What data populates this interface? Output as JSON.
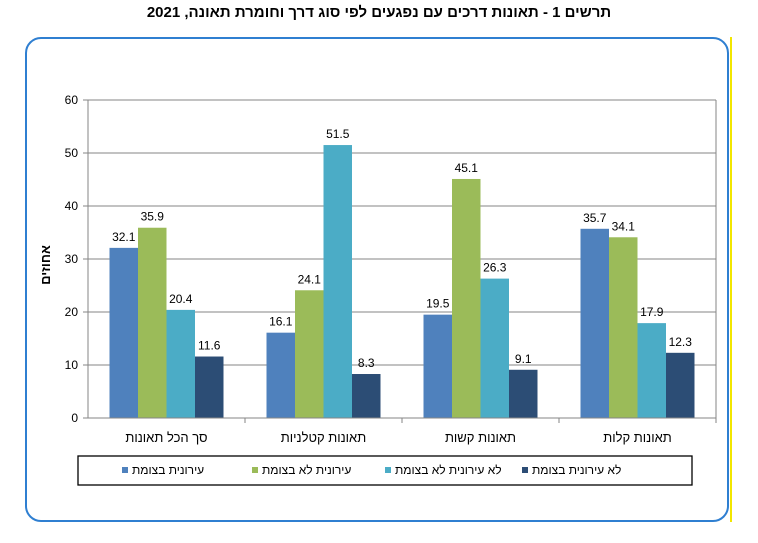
{
  "chart_data": {
    "type": "bar",
    "title": "תרשים 1 - תאונות דרכים עם נפגעים לפי סוג דרך וחומרת תאונה, 2021",
    "ylabel": "אחוזים",
    "xlabel": "",
    "ylim": [
      0,
      60
    ],
    "yticks": [
      0,
      10,
      20,
      30,
      40,
      50,
      60
    ],
    "grid": true,
    "legend_position": "bottom",
    "categories": [
      "סך הכל תאונות",
      "תאונות קטלניות",
      "תאונות קשות",
      "תאונות קלות"
    ],
    "series": [
      {
        "name": "עירונית בצומת",
        "color": "#4f81bd",
        "values": [
          32.1,
          16.1,
          19.5,
          35.7
        ]
      },
      {
        "name": "עירונית לא בצומת",
        "color": "#9bbb59",
        "values": [
          35.9,
          24.1,
          45.1,
          34.1
        ]
      },
      {
        "name": "לא עירונית לא בצומת",
        "color": "#4bacc6",
        "values": [
          20.4,
          51.5,
          26.3,
          17.9
        ]
      },
      {
        "name": "לא עירונית בצומת",
        "color": "#2c4d75",
        "values": [
          11.6,
          8.3,
          9.1,
          12.3
        ]
      }
    ]
  }
}
